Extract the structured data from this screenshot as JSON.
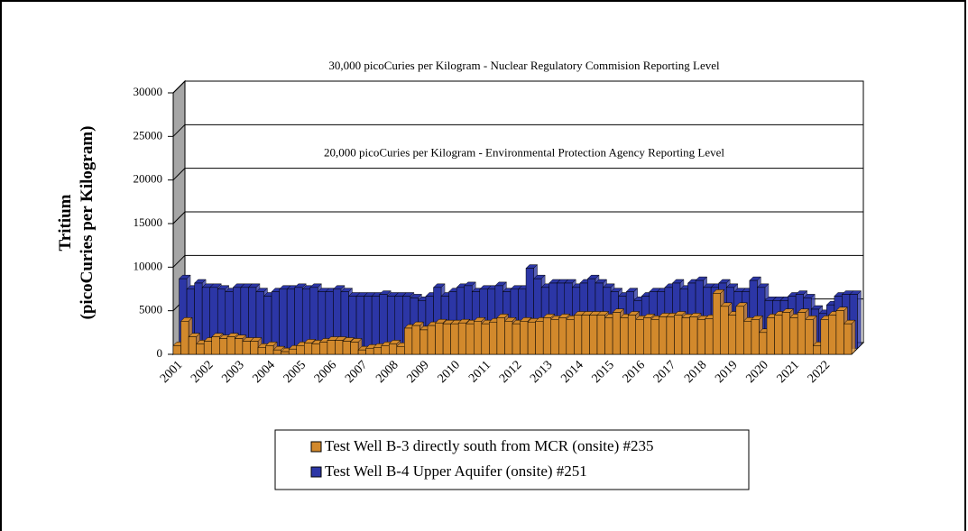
{
  "chart_data": {
    "type": "bar3d",
    "y_label": [
      "Tritium",
      "(picoCuries per Kilogram)"
    ],
    "annotations": [
      {
        "text": "30,000 picoCuries per Kilogram - Nuclear Regulatory Commision Reporting Level",
        "value": 30000
      },
      {
        "text": "20,000 picoCuries per Kilogram - Environmental Protection Agency Reporting Level",
        "value": 20000
      }
    ],
    "categories": [
      "2001",
      null,
      null,
      null,
      "2002",
      null,
      null,
      null,
      "2003",
      null,
      null,
      null,
      "2004",
      null,
      null,
      null,
      "2005",
      null,
      null,
      null,
      "2006",
      null,
      null,
      null,
      "2007",
      null,
      null,
      null,
      "2008",
      null,
      null,
      null,
      "2009",
      null,
      null,
      null,
      "2010",
      null,
      null,
      null,
      "2011",
      null,
      null,
      null,
      "2012",
      null,
      null,
      null,
      "2013",
      null,
      null,
      null,
      "2014",
      null,
      null,
      null,
      "2015",
      null,
      null,
      null,
      "2016",
      null,
      null,
      null,
      "2017",
      null,
      null,
      null,
      "2018",
      null,
      null,
      null,
      "2019",
      null,
      null,
      null,
      "2020",
      null,
      null,
      null,
      "2021",
      null,
      null,
      null,
      "2022",
      null,
      null,
      null
    ],
    "series": [
      {
        "name": "Test Well B-3 directly south from MCR (onsite) #235",
        "color": "#d2892c",
        "values": [
          1000,
          3800,
          2000,
          1200,
          1500,
          2000,
          1800,
          2000,
          1800,
          1500,
          1500,
          800,
          1000,
          500,
          300,
          600,
          1000,
          1300,
          1200,
          1400,
          1600,
          1600,
          1500,
          1400,
          500,
          700,
          800,
          1000,
          1200,
          900,
          3000,
          3300,
          2800,
          3300,
          3600,
          3500,
          3500,
          3600,
          3500,
          3800,
          3500,
          3700,
          4200,
          3800,
          3500,
          3800,
          3700,
          3800,
          4200,
          4000,
          4200,
          4000,
          4500,
          4500,
          4500,
          4500,
          4200,
          4800,
          4200,
          4500,
          4000,
          4200,
          4000,
          4300,
          4300,
          4500,
          4200,
          4300,
          4000,
          4100,
          7000,
          5500,
          4500,
          5500,
          3800,
          4000,
          2500,
          4200,
          4500,
          4800,
          4200,
          4800,
          4000,
          1000,
          4000,
          4500,
          5000,
          3500
        ]
      },
      {
        "name": "Test Well B-4 Upper Aquifer (onsite) #251",
        "color": "#2c36a6",
        "values": [
          8000,
          6800,
          7500,
          7000,
          7000,
          6800,
          6500,
          7000,
          7000,
          7000,
          6500,
          6000,
          6500,
          6800,
          6800,
          7000,
          6800,
          7000,
          6500,
          6500,
          6800,
          6500,
          6000,
          6000,
          6000,
          6000,
          6200,
          6000,
          6000,
          6000,
          5800,
          5500,
          6000,
          7000,
          6000,
          6500,
          7000,
          7200,
          6500,
          6800,
          6800,
          7200,
          6500,
          6800,
          6800,
          9200,
          8000,
          7000,
          7500,
          7500,
          7500,
          7000,
          7500,
          8000,
          7500,
          7000,
          6500,
          6000,
          6500,
          5500,
          6000,
          6500,
          6500,
          7000,
          7500,
          6800,
          7500,
          7800,
          7000,
          7000,
          7500,
          7000,
          6500,
          6500,
          7800,
          7000,
          5500,
          5500,
          5500,
          6000,
          6200,
          5800,
          4500,
          4000,
          5000,
          6000,
          6200,
          6200
        ]
      }
    ],
    "ylim": [
      0,
      30000
    ],
    "yticks": [
      0,
      5000,
      10000,
      15000,
      20000,
      25000,
      30000
    ],
    "grid": true
  }
}
